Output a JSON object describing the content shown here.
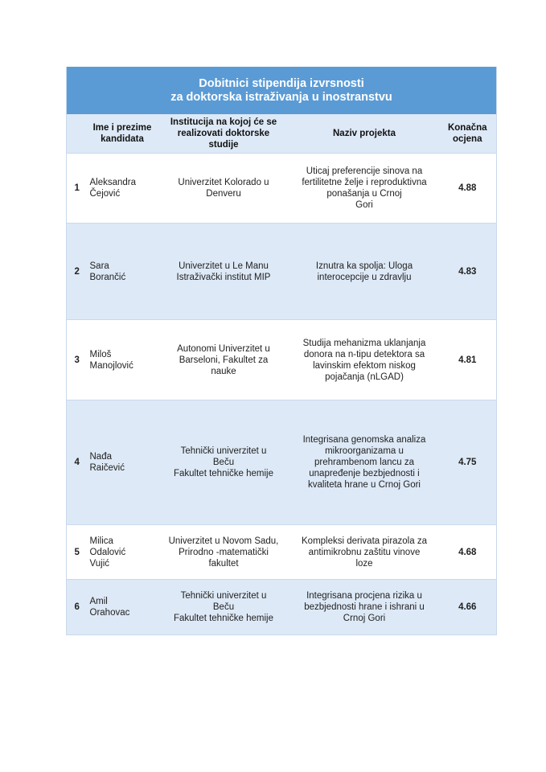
{
  "title": "Dobitnici stipendija izvrsnosti\nza doktorska istraživanja u inostranstvu",
  "headers": [
    "",
    "Ime i prezime\nkandidata",
    "Institucija na kojoj će se\nrealizovati doktorske\nstudije",
    "Naziv projekta",
    "Konačna\nocjena"
  ],
  "rows": [
    {
      "num": "1",
      "name": "Aleksandra\nČejović",
      "institution": "Univerzitet Kolorado u\nDenveru",
      "project": "Uticaj preferencije sinova na\nfertilitetne želje i reproduktivna\nponašanja u Crnoj\nGori",
      "score": "4.88"
    },
    {
      "num": "2",
      "name": "Sara\nBorančić",
      "institution": "Univerzitet u Le Manu\nIstraživački institut MIP",
      "project": "Iznutra ka spolja: Uloga\ninterocepcije u zdravlju",
      "score": "4.83"
    },
    {
      "num": "3",
      "name": "Miloš\nManojlović",
      "institution": "Autonomi Univerzitet u\nBarseloni, Fakultet za\nnauke",
      "project": "Studija mehanizma uklanjanja\ndonora na n-tipu detektora sa\nlavinskim efektom niskog\npojačanja (nLGAD)",
      "score": "4.81"
    },
    {
      "num": "4",
      "name": "Nađa\nRaičević",
      "institution": "Tehnički univerzitet u\nBeču\nFakultet tehničke hemije",
      "project": "Integrisana genomska analiza\nmikroorganizama u\nprehrambenom lancu za\nunapređenje bezbjednosti i\nkvaliteta hrane u Crnoj Gori",
      "score": "4.75"
    },
    {
      "num": "5",
      "name": "Milica\nOdalović\nVujić",
      "institution": "Univerzitet u Novom Sadu,\nPrirodno -matematički\nfakultet",
      "project": "Kompleksi derivata pirazola za\nantimikrobnu zaštitu vinove\nloze",
      "score": "4.68"
    },
    {
      "num": "6",
      "name": "Amil\nOrahovac",
      "institution": "Tehnički univerzitet u\nBeču\nFakultet tehničke hemije",
      "project": "Integrisana procjena rizika u\nbezbjednosti hrane i ishrani u\nCrnoj Gori",
      "score": "4.66"
    }
  ],
  "colors": {
    "title_bg": "#5b9bd5",
    "band_bg": "#dde9f6"
  }
}
